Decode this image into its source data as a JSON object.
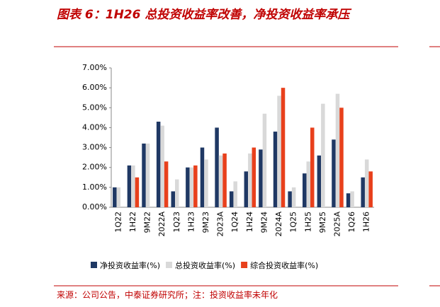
{
  "chart_data": {
    "type": "bar",
    "title": "图表 6：1H26 总投资收益率改善，净投资收益率承压",
    "source": "来源：公司公告，中泰证券研究所；注：投资收益率未年化",
    "categories": [
      "1Q22",
      "1H22",
      "9M22",
      "2022A",
      "1Q23",
      "1H23",
      "9M23",
      "2023A",
      "1Q24",
      "1H24",
      "9M24",
      "2024A",
      "1Q25",
      "1H25",
      "9M25",
      "2025A",
      "1Q26",
      "1H26"
    ],
    "series": [
      {
        "name": "净投资收益率(%)",
        "color": "#1f3864",
        "values": [
          1.0,
          2.1,
          3.2,
          4.3,
          0.8,
          2.0,
          3.0,
          4.0,
          0.8,
          1.8,
          2.9,
          3.8,
          0.8,
          1.7,
          2.6,
          3.4,
          0.7,
          1.5
        ]
      },
      {
        "name": "总投资收益率(%)",
        "color": "#d9d9d9",
        "values": [
          1.0,
          2.1,
          3.2,
          4.1,
          1.4,
          2.0,
          2.4,
          2.6,
          1.3,
          2.7,
          4.7,
          5.6,
          1.0,
          2.3,
          5.2,
          5.7,
          0.8,
          2.4
        ]
      },
      {
        "name": "综合投资收益率(%)",
        "color": "#e8401c",
        "values": [
          null,
          1.5,
          null,
          2.3,
          null,
          2.1,
          null,
          2.7,
          null,
          3.0,
          null,
          6.0,
          null,
          4.0,
          null,
          5.0,
          null,
          1.8
        ]
      }
    ],
    "ylim": [
      0,
      7
    ],
    "yticks": [
      {
        "value": 0,
        "label": "0.00%"
      },
      {
        "value": 1,
        "label": "1.00%"
      },
      {
        "value": 2,
        "label": "2.00%"
      },
      {
        "value": 3,
        "label": "3.00%"
      },
      {
        "value": 4,
        "label": "4.00%"
      },
      {
        "value": 5,
        "label": "5.00%"
      },
      {
        "value": 6,
        "label": "6.00%"
      },
      {
        "value": 7,
        "label": "7.00%"
      }
    ],
    "grid": false
  }
}
